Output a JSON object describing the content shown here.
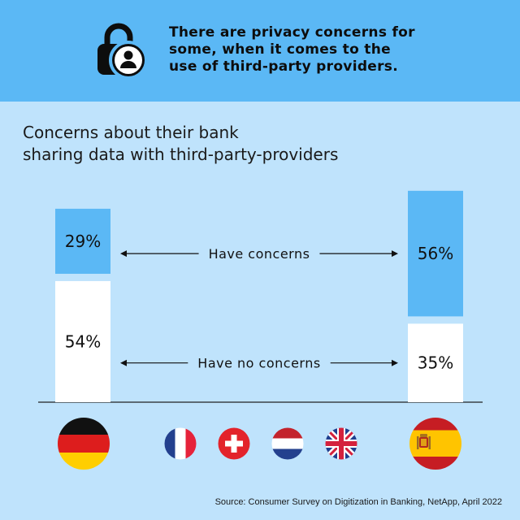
{
  "banner": {
    "icon": "lock-person-icon",
    "line1": "There are privacy concerns for",
    "line2": "some, when it comes to the",
    "line3": "use of third-party providers."
  },
  "subtitle": {
    "line1": "Concerns about their bank",
    "line2": "sharing data with third-party-providers"
  },
  "colors": {
    "banner": "#5bb8f5",
    "background": "#bfe3fc",
    "concerns": "#5bb8f5",
    "no_concerns": "#ffffff"
  },
  "chart_data": {
    "type": "bar",
    "stacked": true,
    "categories": [
      "Germany",
      "Spain"
    ],
    "series": [
      {
        "name": "Have concerns",
        "values": [
          29,
          56
        ],
        "labels": [
          "29%",
          "56%"
        ],
        "color": "#5bb8f5"
      },
      {
        "name": "Have no concerns",
        "values": [
          54,
          35
        ],
        "labels": [
          "54%",
          "35%"
        ],
        "color": "#ffffff"
      }
    ],
    "unit": "%",
    "ylim": [
      0,
      100
    ],
    "grid": false,
    "legend": "inline-arrows-between-bars"
  },
  "flags": {
    "primary": [
      "germany-flag",
      "spain-flag"
    ],
    "others": [
      "france-flag",
      "switzerland-flag",
      "netherlands-flag",
      "united-kingdom-flag"
    ]
  },
  "source": "Source: Consumer Survey on Digitization in Banking, NetApp, April 2022"
}
